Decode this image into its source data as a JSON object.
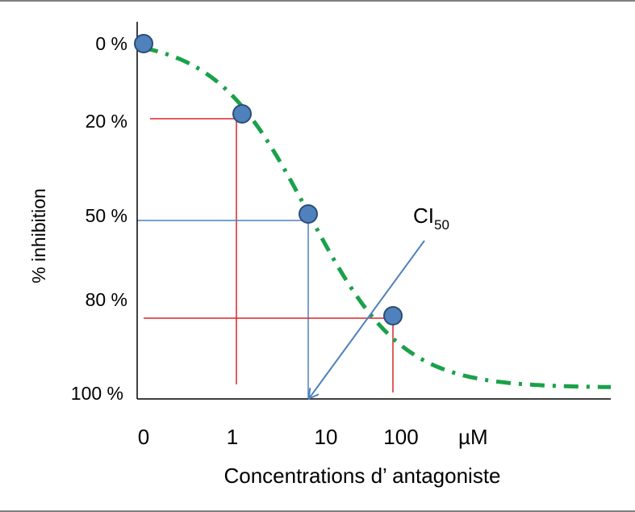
{
  "chart_data": {
    "type": "scatter",
    "title": "",
    "xlabel": "Concentrations d’ antagoniste",
    "ylabel": "% inhibition",
    "x_scale": "log",
    "x_ticks": [
      "0",
      "1",
      "10",
      "100"
    ],
    "x_unit": "µM",
    "y_ticks": [
      "0 %",
      "20 %",
      "50 %",
      "80 %",
      "100 %"
    ],
    "series": [
      {
        "color": "#4f81bd",
        "points": [
          {
            "x": 0,
            "y": 0
          },
          {
            "x": 1,
            "y": 20
          },
          {
            "x": 10,
            "y": 50
          },
          {
            "x": 100,
            "y": 80
          }
        ]
      }
    ],
    "curve_color": "#1aa14a",
    "annotation": {
      "text": "CI",
      "subscript": "50",
      "points_to_x": 10
    }
  }
}
